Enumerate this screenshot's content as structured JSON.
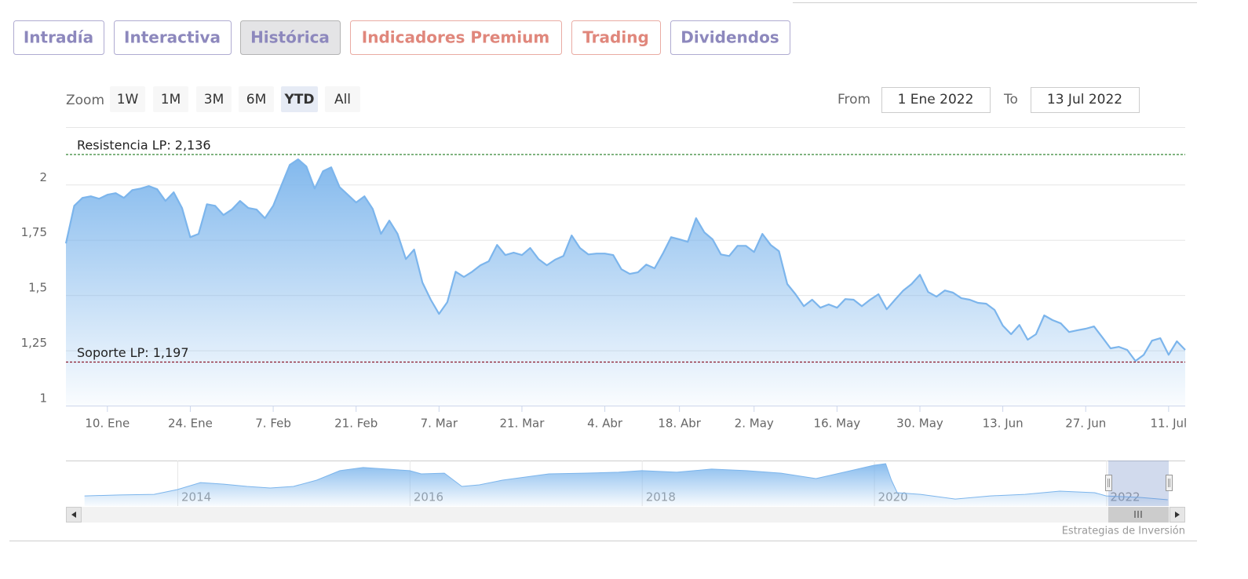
{
  "tabs": [
    {
      "label": "Intradía",
      "color": "#8d88bd"
    },
    {
      "label": "Interactiva",
      "color": "#8d88bd"
    },
    {
      "label": "Histórica",
      "color": "#8d88bd"
    },
    {
      "label": "Indicadores Premium",
      "color": "#e0877c"
    },
    {
      "label": "Trading",
      "color": "#e0877c"
    },
    {
      "label": "Dividendos",
      "color": "#8d88bd"
    }
  ],
  "active_tab": 2,
  "zoom": {
    "label": "Zoom",
    "buttons": [
      "1W",
      "1M",
      "3M",
      "6M",
      "YTD",
      "All"
    ],
    "active": 4
  },
  "range": {
    "from_label": "From",
    "from": "1 Ene 2022",
    "to_label": "To",
    "to": "13 Jul 2022"
  },
  "chart_data": {
    "type": "area",
    "color": "#7cb5ec",
    "grid": true,
    "x": [
      0,
      1,
      2,
      3,
      4,
      5,
      6,
      7,
      8,
      9,
      10,
      11,
      12,
      13,
      14,
      15,
      16,
      17,
      18,
      19,
      20,
      21,
      22,
      23,
      24,
      25,
      26,
      27,
      28,
      29,
      30,
      31,
      32,
      33,
      34,
      35,
      36,
      37,
      38,
      39,
      40,
      41,
      42,
      43,
      44,
      45,
      46,
      47,
      48,
      49,
      50,
      51,
      52,
      53,
      54,
      55,
      56,
      57,
      58,
      59,
      60,
      61,
      62,
      63,
      64,
      65,
      66,
      67,
      68,
      69,
      70,
      71,
      72,
      73,
      74,
      75,
      76,
      77,
      78,
      79,
      80,
      81,
      82,
      83,
      84,
      85,
      86,
      87,
      88,
      89,
      90,
      91,
      92,
      93,
      94,
      95,
      96,
      97,
      98,
      99,
      100,
      101,
      102,
      103,
      104,
      105,
      106,
      107,
      108,
      109,
      110,
      111,
      112,
      113,
      114,
      115,
      116,
      117,
      118,
      119,
      120,
      121,
      122,
      123,
      124,
      125,
      126,
      127,
      128,
      129,
      130,
      131,
      132,
      133,
      134,
      135
    ],
    "values": [
      1.734,
      1.904,
      1.94,
      1.947,
      1.936,
      1.954,
      1.961,
      1.94,
      1.975,
      1.982,
      1.993,
      1.979,
      1.926,
      1.965,
      1.894,
      1.762,
      1.777,
      1.911,
      1.904,
      1.862,
      1.887,
      1.926,
      1.894,
      1.887,
      1.848,
      1.904,
      1.997,
      2.089,
      2.114,
      2.082,
      1.982,
      2.06,
      2.078,
      1.989,
      1.954,
      1.919,
      1.947,
      1.89,
      1.777,
      1.837,
      1.777,
      1.663,
      1.706,
      1.557,
      1.479,
      1.415,
      1.468,
      1.606,
      1.582,
      1.606,
      1.635,
      1.653,
      1.727,
      1.681,
      1.692,
      1.681,
      1.713,
      1.663,
      1.635,
      1.66,
      1.677,
      1.77,
      1.713,
      1.684,
      1.688,
      1.688,
      1.681,
      1.617,
      1.596,
      1.603,
      1.638,
      1.621,
      1.688,
      1.762,
      1.752,
      1.741,
      1.848,
      1.784,
      1.752,
      1.684,
      1.677,
      1.723,
      1.723,
      1.695,
      1.777,
      1.727,
      1.699,
      1.55,
      1.504,
      1.45,
      1.479,
      1.443,
      1.458,
      1.443,
      1.482,
      1.479,
      1.45,
      1.479,
      1.504,
      1.436,
      1.479,
      1.521,
      1.55,
      1.592,
      1.514,
      1.493,
      1.521,
      1.511,
      1.486,
      1.479,
      1.465,
      1.461,
      1.433,
      1.362,
      1.323,
      1.365,
      1.298,
      1.323,
      1.408,
      1.387,
      1.372,
      1.333,
      1.341,
      1.348,
      1.358,
      1.309,
      1.259,
      1.266,
      1.252,
      1.202,
      1.23,
      1.294,
      1.305,
      1.23,
      1.291,
      1.252
    ],
    "xlim": [
      0,
      135
    ],
    "xticks": [
      {
        "value": 5,
        "label": "10. Ene"
      },
      {
        "value": 15,
        "label": "24. Ene"
      },
      {
        "value": 25,
        "label": "7. Feb"
      },
      {
        "value": 35,
        "label": "21. Feb"
      },
      {
        "value": 45,
        "label": "7. Mar"
      },
      {
        "value": 55,
        "label": "21. Mar"
      },
      {
        "value": 65,
        "label": "4. Abr"
      },
      {
        "value": 74,
        "label": "18. Abr"
      },
      {
        "value": 83,
        "label": "2. May"
      },
      {
        "value": 93,
        "label": "16. May"
      },
      {
        "value": 103,
        "label": "30. May"
      },
      {
        "value": 113,
        "label": "13. Jun"
      },
      {
        "value": 123,
        "label": "27. Jun"
      },
      {
        "value": 133,
        "label": "11. Jul"
      }
    ],
    "ylim": [
      1,
      2.26
    ],
    "yticks": [
      1,
      {
        "value": 1.25,
        "label": "1,25"
      },
      {
        "value": 1.5,
        "label": "1,5"
      },
      {
        "value": 1.75,
        "label": "1,75"
      },
      2
    ],
    "plot_lines": [
      {
        "label": "Resistencia LP: 2,136",
        "value": 2.136,
        "color": "#1e7a1e"
      },
      {
        "label": "Soporte LP: 1,197",
        "value": 1.197,
        "color": "#8b1a2b"
      }
    ]
  },
  "navigator": {
    "type": "area",
    "color": "#7cb5ec",
    "x": [
      2013.2,
      2013.5,
      2013.8,
      2014.0,
      2014.2,
      2014.4,
      2014.6,
      2014.8,
      2015.0,
      2015.2,
      2015.4,
      2015.6,
      2015.8,
      2016.0,
      2016.1,
      2016.3,
      2016.45,
      2016.6,
      2016.8,
      2017.0,
      2017.2,
      2017.5,
      2017.8,
      2018.0,
      2018.3,
      2018.6,
      2018.9,
      2019.2,
      2019.5,
      2019.8,
      2020.0,
      2020.1,
      2020.15,
      2020.2,
      2020.4,
      2020.7,
      2021.0,
      2021.3,
      2021.6,
      2021.9,
      2022.0,
      2022.3,
      2022.53
    ],
    "values": [
      1.38,
      1.43,
      1.47,
      1.74,
      2.14,
      2.05,
      1.92,
      1.83,
      1.92,
      2.28,
      2.82,
      3.0,
      2.91,
      2.82,
      2.64,
      2.68,
      1.92,
      2.01,
      2.28,
      2.46,
      2.64,
      2.68,
      2.73,
      2.82,
      2.73,
      2.91,
      2.82,
      2.68,
      2.37,
      2.82,
      3.13,
      3.22,
      2.28,
      1.56,
      1.47,
      1.2,
      1.38,
      1.47,
      1.65,
      1.56,
      1.38,
      1.29,
      1.16
    ],
    "xlim": [
      2013.04,
      2022.68
    ],
    "ylim": [
      0.8,
      3.4
    ],
    "xticks": [
      {
        "value": 2014,
        "label": "2014"
      },
      {
        "value": 2016,
        "label": "2016"
      },
      {
        "value": 2018,
        "label": "2018"
      },
      {
        "value": 2020,
        "label": "2020"
      },
      {
        "value": 2022,
        "label": "2022"
      }
    ]
  },
  "credit": "Estrategias de Inversión"
}
